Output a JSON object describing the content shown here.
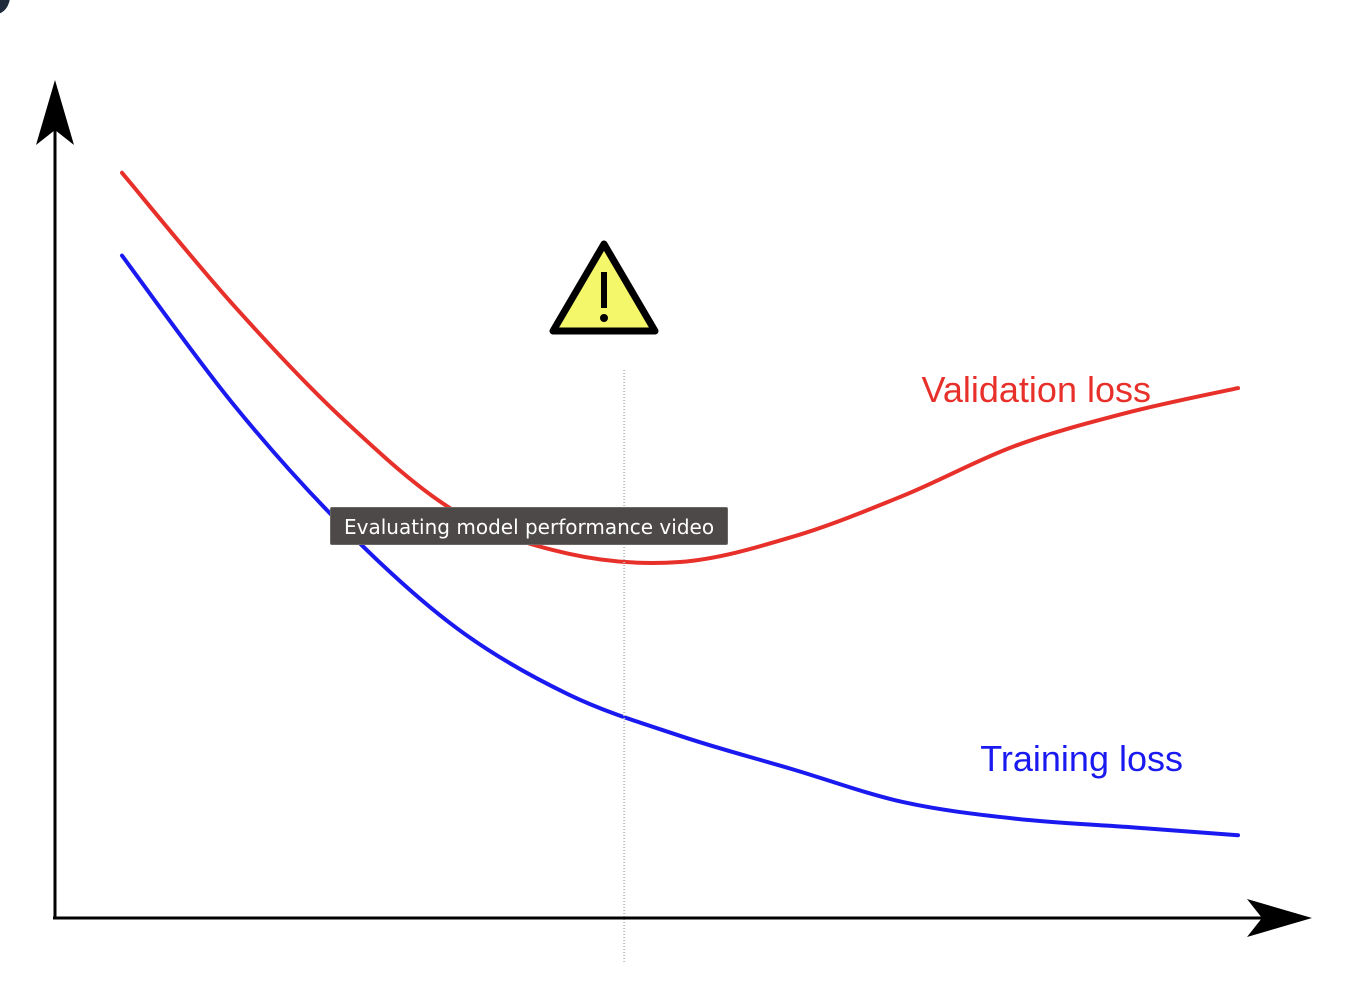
{
  "tooltip": {
    "text": "Evaluating model performance video"
  },
  "warning_icon": "warning-triangle-icon",
  "colors": {
    "validation": "#e8302b",
    "training": "#1a1af0",
    "axes": "#000000",
    "tooltip_bg": "#4d4948",
    "warning_fill": "#f4f76a"
  },
  "chart_data": {
    "type": "line",
    "title": "",
    "xlabel": "",
    "ylabel": "",
    "grid": false,
    "x": [
      0,
      10,
      20,
      30,
      40,
      50,
      60,
      70,
      80,
      90,
      100
    ],
    "series": [
      {
        "name": "Validation loss",
        "color": "#e8302b",
        "values": [
          0.88,
          0.72,
          0.58,
          0.47,
          0.42,
          0.41,
          0.44,
          0.49,
          0.55,
          0.59,
          0.62
        ]
      },
      {
        "name": "Training loss",
        "color": "#1a1af0",
        "values": [
          0.78,
          0.6,
          0.45,
          0.33,
          0.25,
          0.2,
          0.16,
          0.12,
          0.1,
          0.09,
          0.08
        ]
      }
    ],
    "xlim": [
      -6,
      106
    ],
    "ylim": [
      -0.02,
      0.98
    ],
    "marker_x": 45,
    "annotations": [
      "warning at early stopping point"
    ]
  }
}
